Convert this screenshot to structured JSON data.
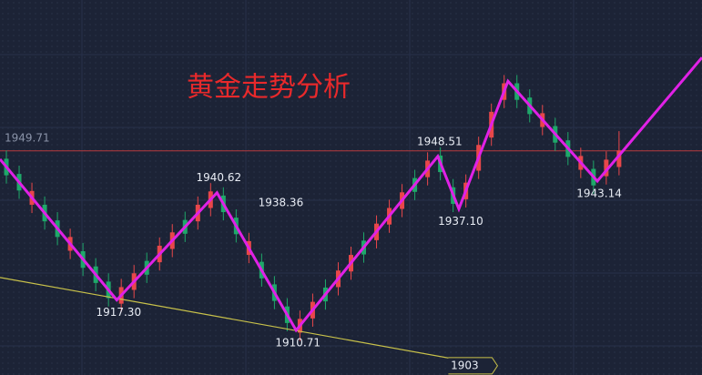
{
  "chart_data": {
    "type": "candlestick",
    "title": "黄金走势分析",
    "xlim": [
      0,
      110
    ],
    "ylim": [
      1901,
      1982.5
    ],
    "up_color": "#e8474a",
    "down_color": "#1fa86a",
    "x": [
      1,
      3,
      5,
      7,
      9,
      11,
      13,
      15,
      17,
      19,
      21,
      23,
      25,
      27,
      29,
      31,
      33,
      35,
      37,
      39,
      41,
      43,
      45,
      47,
      49,
      51,
      53,
      55,
      57,
      59,
      61,
      63,
      65,
      67,
      69,
      71,
      73,
      75,
      77,
      79,
      81,
      83,
      85,
      87,
      89,
      91,
      93,
      95,
      97
    ],
    "open": [
      1948.0,
      1944.7,
      1938.0,
      1938.0,
      1934.6,
      1928.0,
      1927.9,
      1924.6,
      1921.3,
      1916.5,
      1919.5,
      1925.8,
      1925.5,
      1928.4,
      1934.7,
      1934.4,
      1937.3,
      1940.0,
      1935.2,
      1927.1,
      1925.6,
      1920.7,
      1915.9,
      1910.2,
      1913.3,
      1920.0,
      1920.1,
      1923.5,
      1930.2,
      1930.3,
      1933.7,
      1937.1,
      1943.8,
      1944.0,
      1948.7,
      1941.8,
      1939.2,
      1945.4,
      1952.6,
      1960.8,
      1964.4,
      1961.3,
      1954.9,
      1955.1,
      1952.0,
      1945.6,
      1945.8,
      1944.2,
      1946.2
    ],
    "high": [
      1949.8,
      1946.5,
      1942.8,
      1939.8,
      1936.4,
      1932.8,
      1929.7,
      1926.4,
      1923.1,
      1921.9,
      1924.9,
      1927.6,
      1930.9,
      1933.8,
      1936.5,
      1939.8,
      1942.7,
      1941.8,
      1937.0,
      1931.9,
      1927.4,
      1922.5,
      1917.7,
      1915.0,
      1918.7,
      1921.8,
      1925.5,
      1928.9,
      1932.0,
      1935.7,
      1939.1,
      1942.5,
      1945.6,
      1949.4,
      1950.5,
      1943.6,
      1944.6,
      1952.8,
      1960.0,
      1966.2,
      1966.2,
      1963.1,
      1959.7,
      1956.9,
      1953.8,
      1950.4,
      1947.6,
      1949.6,
      1954.0
    ],
    "low": [
      1942.6,
      1939.3,
      1936.2,
      1932.6,
      1929.2,
      1926.2,
      1922.5,
      1919.2,
      1915.9,
      1914.7,
      1917.7,
      1921.0,
      1923.7,
      1926.6,
      1929.9,
      1932.6,
      1935.5,
      1934.6,
      1929.8,
      1925.3,
      1920.2,
      1915.3,
      1910.5,
      1908.4,
      1911.5,
      1915.2,
      1918.3,
      1921.7,
      1925.4,
      1928.5,
      1931.9,
      1935.3,
      1939.0,
      1942.2,
      1943.3,
      1936.4,
      1937.4,
      1943.6,
      1950.8,
      1959.0,
      1959.0,
      1955.9,
      1953.1,
      1949.7,
      1946.6,
      1943.8,
      1940.4,
      1942.4,
      1944.4
    ],
    "close": [
      1944.4,
      1941.1,
      1941.0,
      1934.4,
      1931.0,
      1931.0,
      1924.3,
      1921.0,
      1917.7,
      1920.1,
      1923.1,
      1922.8,
      1929.1,
      1932.0,
      1931.7,
      1938.0,
      1940.9,
      1936.4,
      1931.6,
      1930.1,
      1922.0,
      1917.1,
      1912.3,
      1913.2,
      1916.9,
      1917.0,
      1923.7,
      1927.1,
      1927.2,
      1933.9,
      1937.3,
      1940.7,
      1940.8,
      1947.6,
      1945.1,
      1938.2,
      1942.8,
      1951.0,
      1958.2,
      1964.4,
      1960.8,
      1957.7,
      1957.9,
      1951.5,
      1948.4,
      1948.6,
      1942.2,
      1947.8,
      1949.8
    ],
    "zigzag": {
      "color": "#e021e6",
      "x": [
        0,
        18.3,
        34,
        46.4,
        68.6,
        71.9,
        79.6,
        93.6,
        110
      ],
      "values": [
        1947.9,
        1917.3,
        1940.62,
        1910.71,
        1948.51,
        1937.1,
        1964.85,
        1943.14,
        1970
      ],
      "value_labels": [
        null,
        "1917.30",
        "1940.62",
        "1910.71",
        "1948.51",
        "1937.10",
        null,
        "1943.14",
        null
      ]
    },
    "trendline": {
      "color": "#c9c24a",
      "x": [
        0,
        77.1
      ],
      "values": [
        1922.2,
        1903
      ],
      "value_labels": [
        null,
        "1903"
      ]
    },
    "price_line": {
      "value": 1949.71,
      "color": "#b83a3e"
    },
    "annotations": [
      {
        "x": 44,
        "value": 1938.36
      }
    ]
  }
}
